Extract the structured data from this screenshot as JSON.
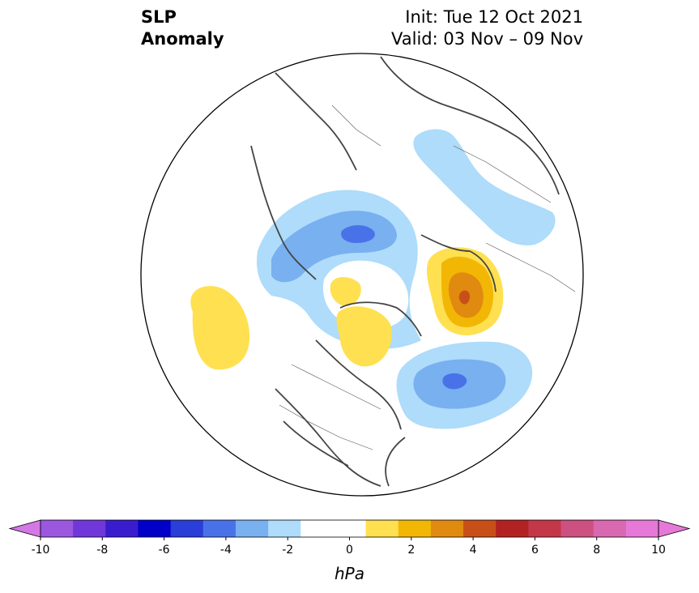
{
  "header": {
    "title_line1": "SLP",
    "title_line2": "Anomaly",
    "init_text": "Init: Tue 12 Oct 2021",
    "valid_text": "Valid: 03 Nov – 09 Nov"
  },
  "colorbar": {
    "unit_label": "hPa",
    "ticks": [
      "-10",
      "-8",
      "-6",
      "-4",
      "-2",
      "0",
      "2",
      "4",
      "6",
      "8",
      "10"
    ],
    "levels": [
      -10,
      -9,
      -8,
      -7,
      -6,
      -5,
      -4,
      -3,
      -2,
      -1,
      1,
      2,
      3,
      4,
      5,
      6,
      7,
      8,
      9,
      10
    ],
    "colors": [
      "#9b58df",
      "#7038d8",
      "#3a1ccf",
      "#0000c8",
      "#2a3ed8",
      "#4a72e8",
      "#78b0f0",
      "#aedcfa",
      "#ffffff",
      "#ffffff",
      "#ffe050",
      "#f2b705",
      "#e08a10",
      "#c85018",
      "#b22222",
      "#c23848",
      "#cc5080",
      "#d868b0",
      "#e678d8"
    ],
    "under_color": "#d478e6",
    "over_color": "#e678d8"
  },
  "map": {
    "projection": "north-polar-stereographic",
    "anomaly_regions": [
      {
        "name": "north-pacific-positive",
        "sign": "positive",
        "level": 1
      },
      {
        "name": "alaska-canada-negative",
        "sign": "negative",
        "level": 3
      },
      {
        "name": "north-atlantic-negative",
        "sign": "negative",
        "level": 3
      },
      {
        "name": "scandinavia-russia-positive",
        "sign": "positive",
        "level": 4
      },
      {
        "name": "siberia-negative",
        "sign": "negative",
        "level": 1
      },
      {
        "name": "arctic-canada-positive",
        "sign": "positive",
        "level": 1
      }
    ]
  }
}
